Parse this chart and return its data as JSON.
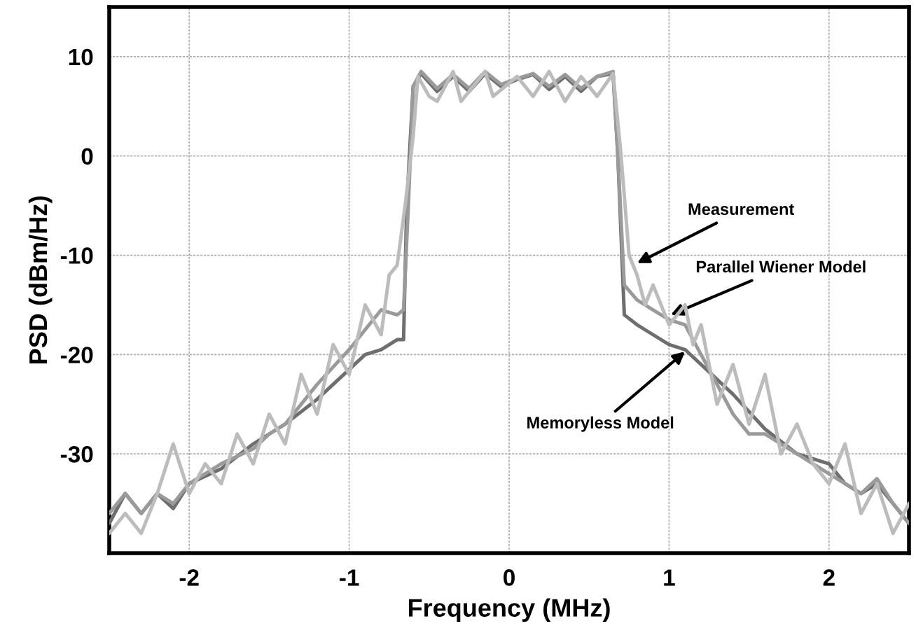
{
  "chart_data": {
    "type": "line",
    "xlabel": "Frequency (MHz)",
    "ylabel": "PSD (dBm/Hz)",
    "xlim": [
      -2.5,
      2.5
    ],
    "ylim": [
      -40,
      15
    ],
    "xticks": [
      -2,
      -1,
      0,
      1,
      2
    ],
    "yticks": [
      {
        "value": -40,
        "label": null
      },
      -30,
      -20,
      -10,
      0,
      10
    ],
    "grid": true,
    "legend": false,
    "marker": "none",
    "line_style": "solid",
    "series": [
      {
        "color": "#bcbcbc",
        "x": [
          -2.5,
          -2.4,
          -2.3,
          -2.2,
          -2.1,
          -2.0,
          -1.9,
          -1.8,
          -1.7,
          -1.6,
          -1.5,
          -1.4,
          -1.3,
          -1.2,
          -1.1,
          -1.0,
          -0.9,
          -0.8,
          -0.75,
          -0.7,
          -0.65,
          -0.6,
          -0.57,
          -0.5,
          -0.45,
          -0.35,
          -0.3,
          -0.15,
          -0.1,
          0.05,
          0.15,
          0.25,
          0.35,
          0.45,
          0.55,
          0.65,
          0.7,
          0.75,
          0.8,
          0.85,
          0.9,
          1.0,
          1.1,
          1.15,
          1.2,
          1.3,
          1.4,
          1.5,
          1.6,
          1.7,
          1.8,
          1.9,
          2.0,
          2.1,
          2.2,
          2.3,
          2.4,
          2.5
        ],
        "values": [
          -38,
          -36,
          -38,
          -34,
          -29,
          -34,
          -31,
          -33,
          -28,
          -31,
          -26,
          -29,
          -22,
          -26,
          -19,
          -22,
          -15,
          -18,
          -12,
          -11,
          -5,
          2,
          8,
          6,
          5.5,
          8.5,
          5.5,
          8.5,
          6,
          8,
          6,
          8.5,
          5.5,
          8,
          6,
          8.3,
          0,
          -10,
          -12,
          -15,
          -13,
          -17,
          -15,
          -19,
          -17,
          -25,
          -21,
          -27,
          -22,
          -30,
          -27,
          -31,
          -33,
          -29,
          -36,
          -33,
          -38,
          -35
        ]
      },
      {
        "color": "#9a9a9a",
        "x": [
          -2.5,
          -2.4,
          -2.3,
          -2.2,
          -2.1,
          -2.0,
          -1.8,
          -1.6,
          -1.5,
          -1.4,
          -1.2,
          -1.0,
          -0.8,
          -0.7,
          -0.66,
          -0.63,
          -0.6,
          -0.55,
          -0.45,
          -0.35,
          -0.25,
          -0.15,
          -0.05,
          0.05,
          0.15,
          0.25,
          0.35,
          0.45,
          0.55,
          0.65,
          0.68,
          0.72,
          0.8,
          0.9,
          1.0,
          1.1,
          1.2,
          1.4,
          1.5,
          1.6,
          1.8,
          2.0,
          2.1,
          2.2,
          2.3,
          2.4,
          2.5
        ],
        "values": [
          -36,
          -34,
          -36,
          -34,
          -35,
          -33,
          -31,
          -29.5,
          -28,
          -27,
          -23,
          -19.5,
          -15.5,
          -16,
          -15.5,
          -5,
          7,
          8.5,
          6.8,
          8.2,
          6.8,
          8.5,
          7.2,
          7.8,
          8.3,
          7,
          8.2,
          6.8,
          8,
          8.5,
          0,
          -13,
          -14.5,
          -15.5,
          -16.5,
          -17,
          -20,
          -26,
          -28,
          -28,
          -30,
          -32,
          -33,
          -34,
          -32.5,
          -35,
          -37
        ]
      },
      {
        "color": "#6e6e6e",
        "x": [
          -2.5,
          -2.4,
          -2.3,
          -2.2,
          -2.1,
          -2.0,
          -1.8,
          -1.6,
          -1.4,
          -1.2,
          -1.0,
          -0.9,
          -0.8,
          -0.7,
          -0.66,
          -0.64,
          -0.6,
          -0.55,
          -0.45,
          -0.35,
          -0.25,
          -0.15,
          -0.05,
          0.05,
          0.15,
          0.25,
          0.35,
          0.45,
          0.55,
          0.65,
          0.68,
          0.72,
          0.8,
          0.9,
          1.0,
          1.1,
          1.2,
          1.4,
          1.6,
          1.8,
          2.0,
          2.1,
          2.2,
          2.3,
          2.4,
          2.5
        ],
        "values": [
          -37,
          -34,
          -36,
          -34,
          -35.5,
          -33,
          -31.5,
          -29,
          -27,
          -24.5,
          -21.5,
          -20,
          -19.5,
          -18.5,
          -18.5,
          -5,
          7,
          8.3,
          6.5,
          8,
          6.5,
          8.3,
          7,
          7.7,
          8.2,
          6.7,
          8,
          6.5,
          8,
          8.3,
          0,
          -16,
          -17,
          -18,
          -19,
          -19.5,
          -21,
          -24,
          -27.5,
          -30,
          -31,
          -33,
          -34,
          -33,
          -35,
          -37
        ]
      }
    ],
    "annotations": [
      {
        "text": "Measurement",
        "x": 0.8,
        "y": -10.8
      },
      {
        "text": "Parallel Wiener Model",
        "x": 1.01,
        "y": -16
      },
      {
        "text": "Memoryless Model",
        "x": 1.1,
        "y": -19.7
      }
    ]
  }
}
